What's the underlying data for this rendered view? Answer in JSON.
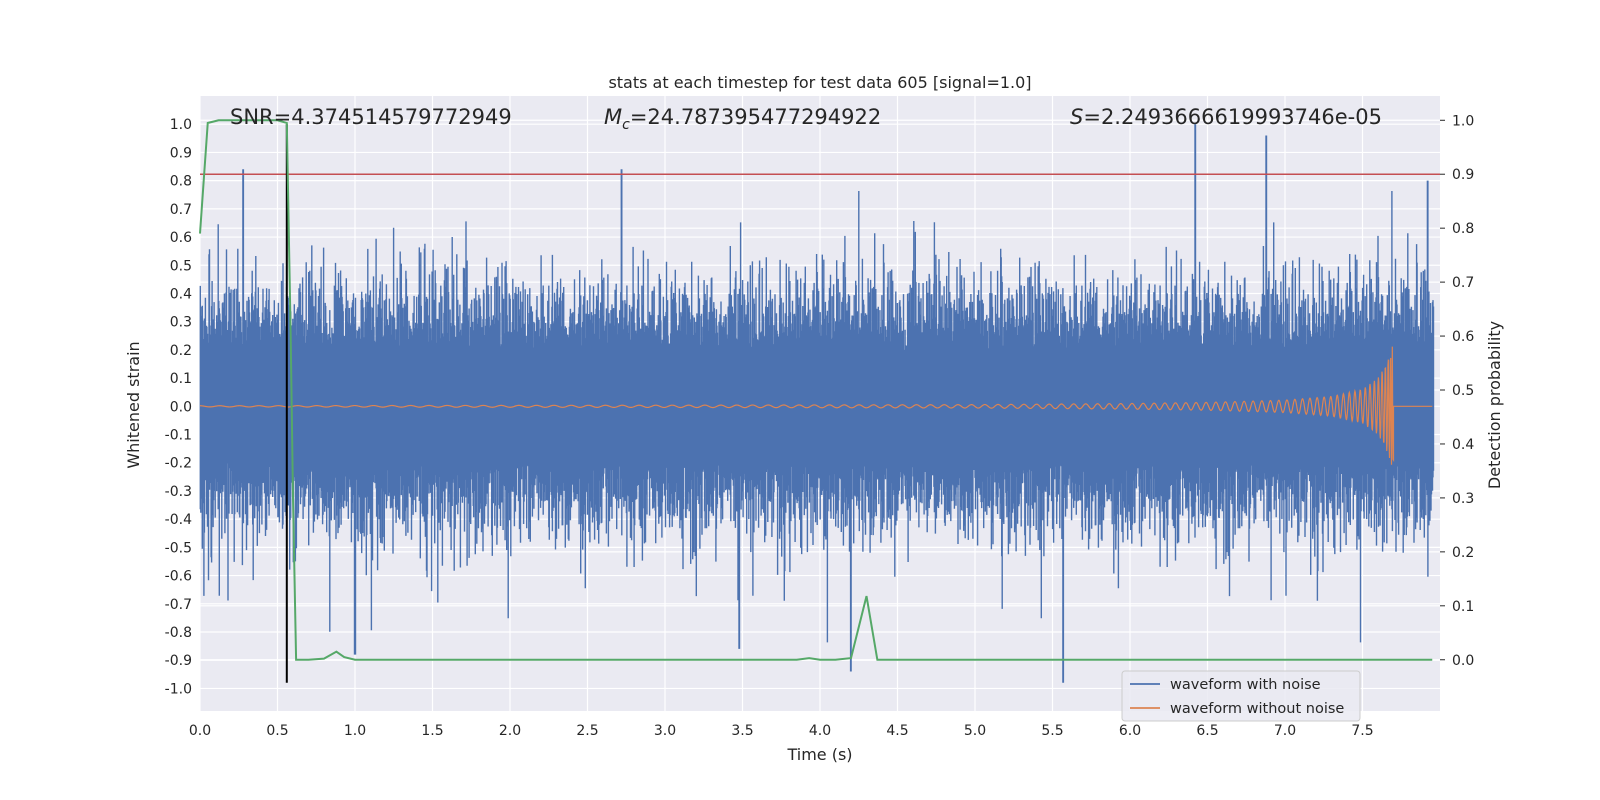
{
  "chart_data": {
    "type": "line",
    "title": "stats at each timestep for test data 605 [signal=1.0]",
    "xlabel": "Time (s)",
    "ylabel": "Whitened strain",
    "ylabel_right": "Detection probability",
    "xlim": [
      0,
      8.0
    ],
    "ylim": [
      -1.08,
      1.1
    ],
    "ylim_right": [
      -0.095,
      1.045
    ],
    "x_ticks": [
      "0.0",
      "0.5",
      "1.0",
      "1.5",
      "2.0",
      "2.5",
      "3.0",
      "3.5",
      "4.0",
      "4.5",
      "5.0",
      "5.5",
      "6.0",
      "6.5",
      "7.0",
      "7.5"
    ],
    "y_ticks": [
      "1.0",
      "0.9",
      "0.8",
      "0.7",
      "0.6",
      "0.5",
      "0.4",
      "0.3",
      "0.2",
      "0.1",
      "0.0",
      "-0.1",
      "-0.2",
      "-0.3",
      "-0.4",
      "-0.5",
      "-0.6",
      "-0.7",
      "-0.8",
      "-0.9",
      "-1.0"
    ],
    "y_ticks_right": [
      "1.0",
      "0.9",
      "0.8",
      "0.7",
      "0.6",
      "0.5",
      "0.4",
      "0.3",
      "0.2",
      "0.1",
      "0.0"
    ],
    "grid": true,
    "legend_position": "bottom-right",
    "annotations": {
      "snr": "SNR=4.374514579772949",
      "mc_symbol": "M",
      "mc_subscript": "c",
      "mc_value": "=24.787395477294922",
      "s_symbol": "S",
      "s_value": "=2.2493666619993746e-05"
    },
    "series": [
      {
        "name": "waveform with noise",
        "color": "#4c72b0",
        "axis": "left",
        "envelope_peaks": [
          {
            "x": 0.28,
            "y": 0.84
          },
          {
            "x": 2.72,
            "y": 0.84
          },
          {
            "x": 6.42,
            "y": 1.0
          },
          {
            "x": 6.88,
            "y": 0.96
          },
          {
            "x": 7.92,
            "y": 0.8
          },
          {
            "x": 4.2,
            "y": -0.94
          },
          {
            "x": 5.57,
            "y": -0.98
          },
          {
            "x": 1.0,
            "y": -0.88
          },
          {
            "x": 3.48,
            "y": -0.86
          }
        ]
      },
      {
        "name": "waveform without noise",
        "color": "#dd8452",
        "axis": "left",
        "description_points": {
          "x": [
            0.0,
            3.0,
            5.0,
            6.0,
            6.5,
            7.0,
            7.3,
            7.5,
            7.6,
            7.65,
            7.68,
            7.7
          ],
          "amplitude": [
            0.002,
            0.004,
            0.006,
            0.01,
            0.014,
            0.022,
            0.035,
            0.06,
            0.1,
            0.15,
            0.2,
            0.22
          ]
        }
      },
      {
        "name": "Detection probability",
        "color": "#55a868",
        "axis": "right",
        "x": [
          0.0,
          0.05,
          0.12,
          0.2,
          0.3,
          0.4,
          0.5,
          0.56,
          0.585,
          0.6,
          0.62,
          0.64,
          0.7,
          0.8,
          0.88,
          0.93,
          1.0,
          1.5,
          2.0,
          2.5,
          3.0,
          3.5,
          3.85,
          3.93,
          4.0,
          4.1,
          4.2,
          4.3,
          4.37,
          4.5,
          5.0,
          5.5,
          6.0,
          6.5,
          7.0,
          7.5,
          7.95
        ],
        "values": [
          0.79,
          0.995,
          1.0,
          1.0,
          1.0,
          1.0,
          1.0,
          0.995,
          0.6,
          0.3,
          0.0,
          0.0,
          0.0,
          0.002,
          0.015,
          0.005,
          0.0,
          0.0,
          0.0,
          0.0,
          0.0,
          0.0,
          0.0,
          0.003,
          0.0,
          0.0,
          0.003,
          0.118,
          0.0,
          0.0,
          0.0,
          0.0,
          0.0,
          0.0,
          0.0,
          0.0,
          0.0
        ]
      }
    ],
    "reference_lines": [
      {
        "orientation": "horizontal",
        "axis": "right",
        "value": 0.9,
        "color": "#c44e52"
      },
      {
        "orientation": "vertical",
        "value": 0.56,
        "color": "#000000"
      }
    ]
  }
}
